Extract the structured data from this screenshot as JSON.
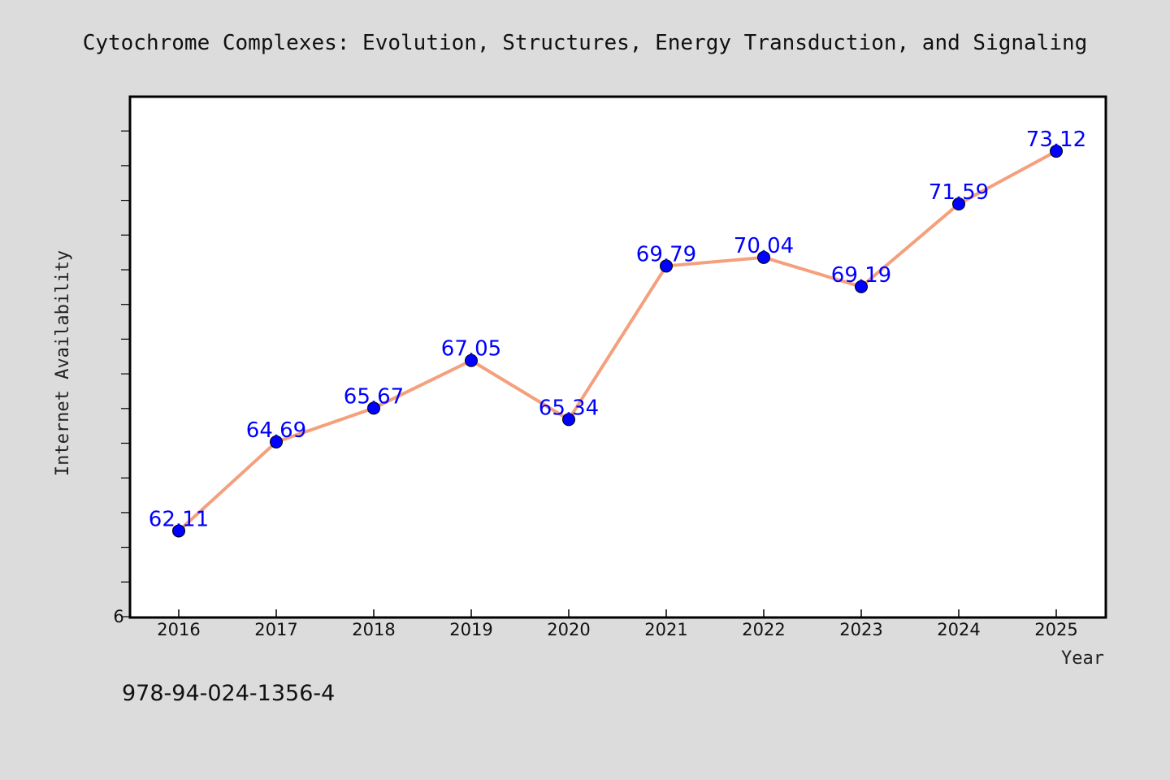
{
  "chart_data": {
    "type": "line",
    "title": "Cytochrome Complexes: Evolution, Structures, Energy Transduction, and Signaling",
    "xlabel": "Year",
    "ylabel": "Internet Availability",
    "categories": [
      "2016",
      "2017",
      "2018",
      "2019",
      "2020",
      "2021",
      "2022",
      "2023",
      "2024",
      "2025"
    ],
    "series": [
      {
        "values": [
          62.11,
          64.69,
          65.67,
          67.05,
          65.34,
          69.79,
          70.04,
          69.19,
          71.59,
          73.12
        ],
        "data_labels": [
          "62.11",
          "64.69",
          "65.67",
          "67.05",
          "65.34",
          "69.79",
          "70.04",
          "69.19",
          "71.59",
          "73.12"
        ],
        "line_color": "#f4a07c",
        "marker_color": "#0000ff"
      }
    ],
    "ylim": [
      59.6,
      74.7
    ],
    "y_tick_label_shown": "6",
    "grid": false,
    "legend": "none"
  },
  "footer": {
    "isbn": "978-94-024-1356-4"
  },
  "colors": {
    "background": "#dcdcdc",
    "plot_background": "#ffffff",
    "label_color": "#0000ff"
  }
}
